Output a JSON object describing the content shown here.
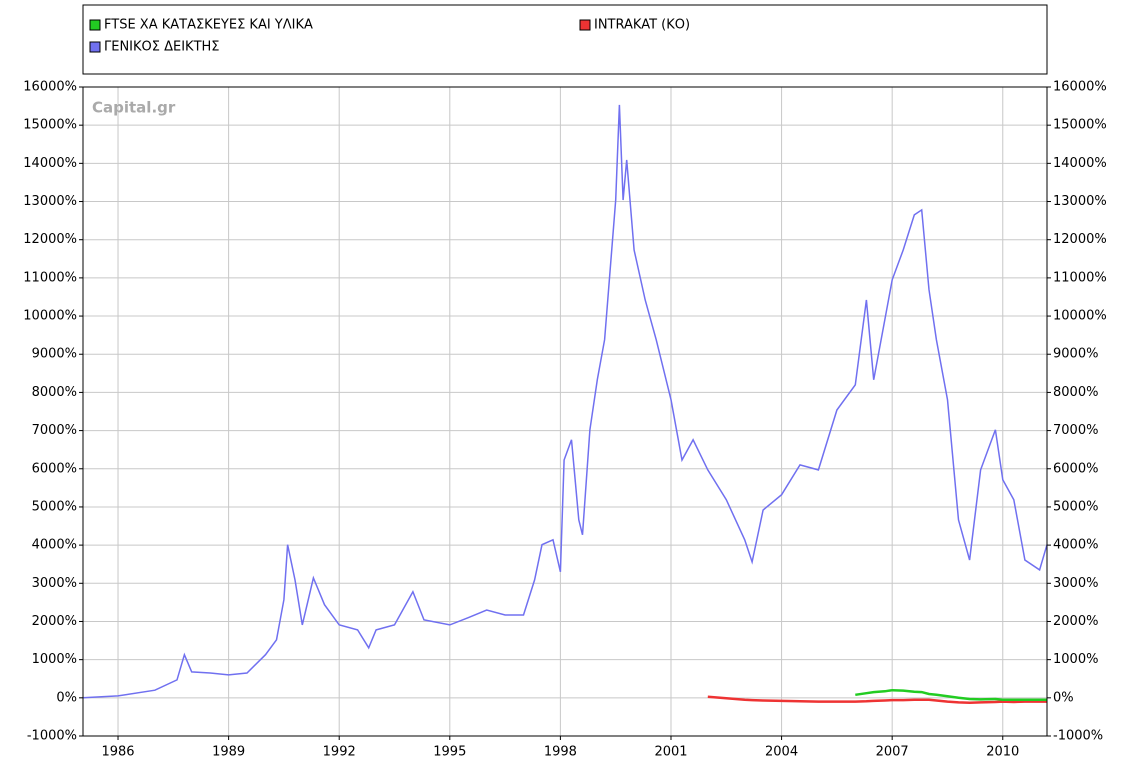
{
  "chart_data": {
    "type": "line",
    "watermark": "Capital.gr",
    "x": [
      1985.05,
      1986,
      1987,
      1987.6,
      1987.8,
      1988,
      1988.5,
      1989,
      1989.5,
      1990,
      1990.3,
      1990.5,
      1990.6,
      1990.8,
      1991,
      1991.3,
      1991.6,
      1992,
      1992.5,
      1992.8,
      1993,
      1993.5,
      1994,
      1994.3,
      1995,
      1995.5,
      1996,
      1996.5,
      1997,
      1997.3,
      1997.5,
      1997.8,
      1998,
      1998.1,
      1998.3,
      1998.5,
      1998.6,
      1998.8,
      1999,
      1999.2,
      1999.5,
      1999.6,
      1999.7,
      1999.8,
      2000,
      2000.3,
      2000.6,
      2001,
      2001.3,
      2001.6,
      2002,
      2002.5,
      2003,
      2003.2,
      2003.5,
      2004,
      2004.5,
      2005,
      2005.5,
      2006,
      2006.3,
      2006.5,
      2006.8,
      2007,
      2007.3,
      2007.6,
      2007.8,
      2008,
      2008.2,
      2008.5,
      2008.8,
      2009.1,
      2009.4,
      2009.8,
      2010,
      2010.3,
      2010.6,
      2011,
      2011.2
    ],
    "series": [
      {
        "name": "ΓΕΝΙΚΟΣ ΔΕΙΚΤΗΣ",
        "color": "#7070f0",
        "values": [
          0,
          50,
          200,
          470,
          1130,
          680,
          650,
          600,
          650,
          1130,
          1520,
          2570,
          4010,
          3090,
          1910,
          3140,
          2440,
          1910,
          1780,
          1310,
          1780,
          1910,
          2780,
          2040,
          1910,
          2100,
          2300,
          2170,
          2170,
          3090,
          4010,
          4140,
          3300,
          6230,
          6760,
          4660,
          4270,
          7020,
          8330,
          9380,
          13040,
          15530,
          13040,
          14090,
          11730,
          10420,
          9380,
          7810,
          6230,
          6760,
          5970,
          5190,
          4140,
          3560,
          4920,
          5320,
          6100,
          5970,
          7540,
          8200,
          10420,
          8330,
          9900,
          10950,
          11730,
          12650,
          12780,
          10690,
          9380,
          7810,
          4660,
          3610,
          5970,
          7020,
          5710,
          5190,
          3610,
          3350,
          4010
        ]
      },
      {
        "name": "FTSE ΧΑ ΚΑΤΑΣΚΕΥΕΣ ΚΑΙ ΥΛΙΚΑ",
        "color": "#22cc22",
        "values": [
          null,
          null,
          null,
          null,
          null,
          null,
          null,
          null,
          null,
          null,
          null,
          null,
          null,
          null,
          null,
          null,
          null,
          null,
          null,
          null,
          null,
          null,
          null,
          null,
          null,
          null,
          null,
          null,
          null,
          null,
          null,
          null,
          null,
          null,
          null,
          null,
          null,
          null,
          null,
          null,
          null,
          null,
          null,
          null,
          null,
          null,
          null,
          null,
          null,
          null,
          null,
          null,
          null,
          null,
          null,
          null,
          null,
          null,
          null,
          80,
          120,
          150,
          170,
          200,
          190,
          160,
          150,
          100,
          80,
          40,
          0,
          -30,
          -40,
          -30,
          -50,
          -50,
          -50,
          -50,
          -50
        ]
      },
      {
        "name": "INTRAKAT (ΚΟ)",
        "color": "#ee3333",
        "values": [
          null,
          null,
          null,
          null,
          null,
          null,
          null,
          null,
          null,
          null,
          null,
          null,
          null,
          null,
          null,
          null,
          null,
          null,
          null,
          null,
          null,
          null,
          null,
          null,
          null,
          null,
          null,
          null,
          null,
          null,
          null,
          null,
          null,
          null,
          null,
          null,
          null,
          null,
          null,
          null,
          null,
          null,
          null,
          null,
          null,
          null,
          null,
          null,
          null,
          null,
          30,
          -10,
          -50,
          -60,
          -70,
          -80,
          -90,
          -100,
          -100,
          -100,
          -90,
          -80,
          -70,
          -60,
          -60,
          -50,
          -50,
          -50,
          -70,
          -100,
          -120,
          -130,
          -120,
          -110,
          -100,
          -110,
          -100,
          -100,
          -100
        ]
      }
    ],
    "xlim": [
      1985.05,
      2011.2
    ],
    "xticks": [
      1986,
      1989,
      1992,
      1995,
      1998,
      2001,
      2004,
      2007,
      2010
    ],
    "ylim": [
      -1000,
      16000
    ],
    "yticks": [
      {
        "value": -1000,
        "label": "-1000%"
      },
      {
        "value": 0,
        "label": "0%"
      },
      {
        "value": 1000,
        "label": "1000%"
      },
      {
        "value": 2000,
        "label": "2000%"
      },
      {
        "value": 3000,
        "label": "3000%"
      },
      {
        "value": 4000,
        "label": "4000%"
      },
      {
        "value": 5000,
        "label": "5000%"
      },
      {
        "value": 6000,
        "label": "6000%"
      },
      {
        "value": 7000,
        "label": "7000%"
      },
      {
        "value": 8000,
        "label": "8000%"
      },
      {
        "value": 9000,
        "label": "9000%"
      },
      {
        "value": 10000,
        "label": "10000%"
      },
      {
        "value": 11000,
        "label": "11000%"
      },
      {
        "value": 12000,
        "label": "12000%"
      },
      {
        "value": 13000,
        "label": "13000%"
      },
      {
        "value": 14000,
        "label": "14000%"
      },
      {
        "value": 15000,
        "label": "15000%"
      },
      {
        "value": 16000,
        "label": "16000%"
      }
    ],
    "y2lim": [
      -1000,
      16000
    ],
    "y2ticks": [
      {
        "value": -1000,
        "label": "-1000%"
      },
      {
        "value": 0,
        "label": "0%"
      },
      {
        "value": 1000,
        "label": "1000%"
      },
      {
        "value": 2000,
        "label": "2000%"
      },
      {
        "value": 3000,
        "label": "3000%"
      },
      {
        "value": 4000,
        "label": "4000%"
      },
      {
        "value": 5000,
        "label": "5000%"
      },
      {
        "value": 6000,
        "label": "6000%"
      },
      {
        "value": 7000,
        "label": "7000%"
      },
      {
        "value": 8000,
        "label": "8000%"
      },
      {
        "value": 9000,
        "label": "9000%"
      },
      {
        "value": 10000,
        "label": "10000%"
      },
      {
        "value": 11000,
        "label": "11000%"
      },
      {
        "value": 12000,
        "label": "12000%"
      },
      {
        "value": 13000,
        "label": "13000%"
      },
      {
        "value": 14000,
        "label": "14000%"
      },
      {
        "value": 15000,
        "label": "15000%"
      },
      {
        "value": 16000,
        "label": "16000%"
      }
    ],
    "grid": true
  }
}
